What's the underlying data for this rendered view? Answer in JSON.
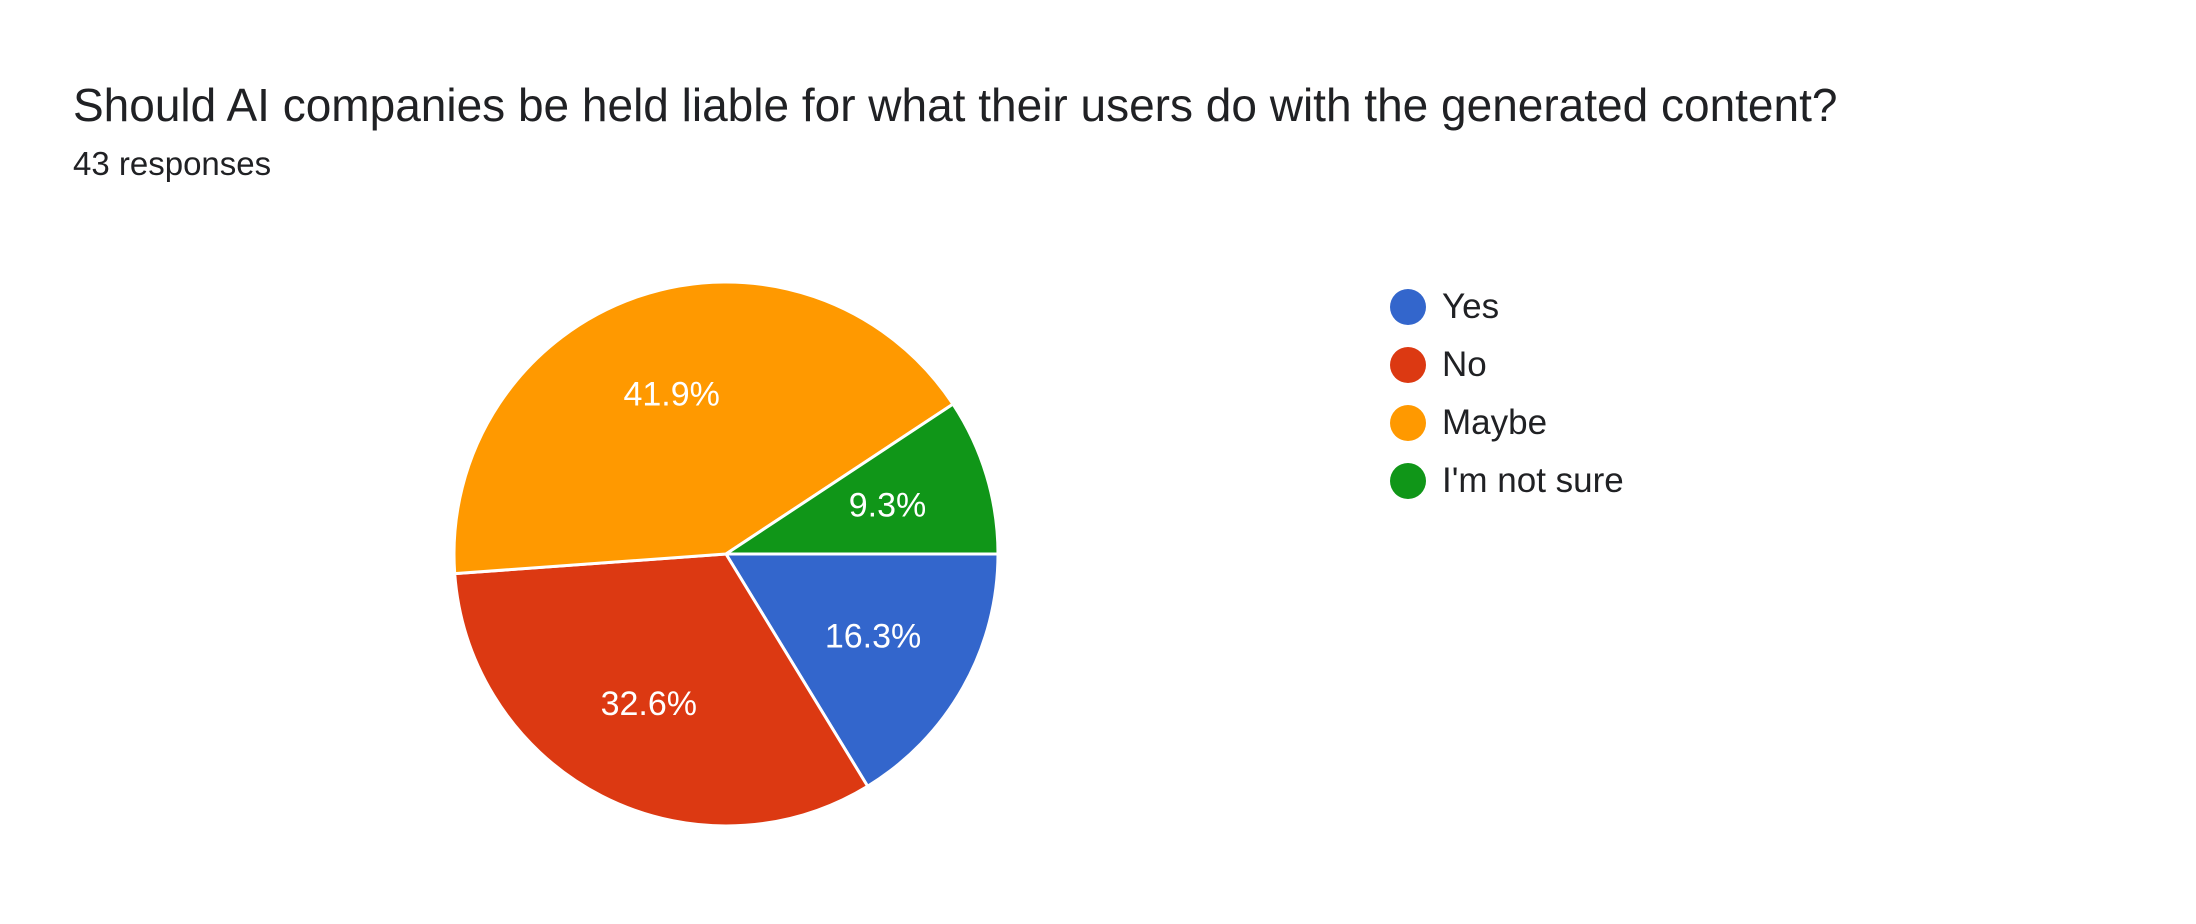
{
  "header": {
    "title": "Should AI companies be held liable for what their users do with the generated content?",
    "responses": "43 responses"
  },
  "chart_data": {
    "type": "pie",
    "categories": [
      "Yes",
      "No",
      "Maybe",
      "I'm not sure"
    ],
    "values": [
      16.3,
      32.6,
      41.9,
      9.3
    ],
    "labels": [
      "16.3%",
      "32.6%",
      "41.9%",
      "9.3%"
    ],
    "colors": [
      "#3366cc",
      "#dc3912",
      "#ff9900",
      "#109618"
    ],
    "legend_position": "right",
    "start": "3 o'clock, clockwise"
  }
}
